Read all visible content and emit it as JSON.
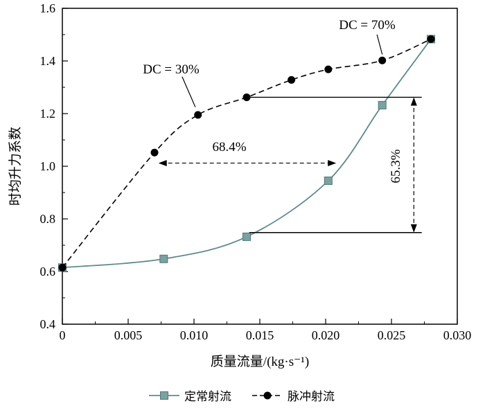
{
  "chart_data": {
    "type": "line",
    "title": "",
    "xlabel": "质量流量/(kg·s⁻¹)",
    "ylabel": "时均升力系数",
    "xlim": [
      0,
      0.03
    ],
    "ylim": [
      0.4,
      1.6
    ],
    "xticks": [
      0,
      0.005,
      0.01,
      0.015,
      0.02,
      0.025,
      0.03
    ],
    "xtick_labels": [
      "0",
      "0.005",
      "0.010",
      "0.015",
      "0.020",
      "0.025",
      "0.030"
    ],
    "yticks": [
      0.4,
      0.6,
      0.8,
      1.0,
      1.2,
      1.4,
      1.6
    ],
    "ytick_labels": [
      "0.4",
      "0.6",
      "0.8",
      "1.0",
      "1.2",
      "1.4",
      "1.6"
    ],
    "x_minor_step": 0.0025,
    "y_minor_step": 0.1,
    "grid": false,
    "legend_position": "bottom",
    "series": [
      {
        "name": "定常射流",
        "marker": "square",
        "line_style": "solid",
        "color": "#5f8a8b",
        "marker_fill": "#7da0a1",
        "x": [
          0,
          0.0077,
          0.014,
          0.0202,
          0.0243,
          0.028
        ],
        "y": [
          0.615,
          0.648,
          0.732,
          0.945,
          1.232,
          1.483
        ]
      },
      {
        "name": "脉冲射流",
        "marker": "circle",
        "line_style": "dashed",
        "color": "#000000",
        "marker_fill": "#000000",
        "x": [
          0,
          0.007,
          0.0103,
          0.014,
          0.0174,
          0.0202,
          0.0243,
          0.028
        ],
        "y": [
          0.615,
          1.052,
          1.195,
          1.262,
          1.328,
          1.368,
          1.402,
          1.483
        ]
      }
    ],
    "annotations": [
      {
        "id": "dc30",
        "text": "DC = 30%",
        "type": "label",
        "leader": {
          "x1": 0.0091,
          "y1": 1.34,
          "x2": 0.0101,
          "y2": 1.225
        }
      },
      {
        "id": "dc70",
        "text": "DC = 70%",
        "type": "label",
        "leader": {
          "x1": 0.0239,
          "y1": 1.5,
          "x2": 0.0243,
          "y2": 1.425
        }
      },
      {
        "id": "gain-68",
        "text": "68.4%",
        "type": "h-double-arrow",
        "x1": 0.0073,
        "x2": 0.0208,
        "y": 1.012
      },
      {
        "id": "gain-65",
        "text": "65.3%",
        "type": "v-double-arrow",
        "x": 0.0267,
        "y1": 0.748,
        "y2": 1.262
      },
      {
        "id": "ref-top",
        "text": "",
        "type": "h-line",
        "x1": 0.0139,
        "x2": 0.0273,
        "y": 1.262
      },
      {
        "id": "ref-bottom",
        "text": "",
        "type": "h-line",
        "x1": 0.0142,
        "x2": 0.0273,
        "y": 0.748
      }
    ]
  }
}
